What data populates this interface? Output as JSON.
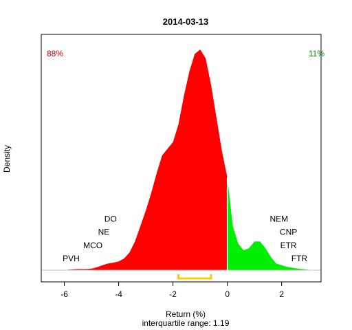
{
  "chart_data": {
    "type": "area",
    "title": "2014-03-13",
    "xlabel": "Return (%)",
    "ylabel": "Density",
    "subtitle": "interquartile range: 1.19",
    "xlim": [
      -6.85,
      3.45
    ],
    "ylim": [
      0,
      1
    ],
    "x_ticks": [
      -6,
      -4,
      -2,
      0,
      2
    ],
    "x_tick_labels": [
      "-6",
      "-4",
      "-2",
      "0",
      "2"
    ],
    "split_at": 0,
    "left_share_label": "88%",
    "right_share_label": "11%",
    "colors": {
      "negative": "#ff0000",
      "positive": "#00ee00",
      "negative_label": "#cc0000",
      "positive_label": "#008800",
      "iqr_bracket": "#ffcc00",
      "baseline": "#bebebe",
      "frame": "#000000"
    },
    "iqr": [
      -1.8,
      -0.6
    ],
    "density_curve": [
      [
        -6.2,
        0.0
      ],
      [
        -6.0,
        0.0
      ],
      [
        -5.8,
        0.003
      ],
      [
        -5.5,
        0.005
      ],
      [
        -5.2,
        0.005
      ],
      [
        -5.0,
        0.007
      ],
      [
        -4.8,
        0.013
      ],
      [
        -4.6,
        0.022
      ],
      [
        -4.4,
        0.03
      ],
      [
        -4.2,
        0.034
      ],
      [
        -4.0,
        0.04
      ],
      [
        -3.8,
        0.053
      ],
      [
        -3.6,
        0.08
      ],
      [
        -3.4,
        0.13
      ],
      [
        -3.2,
        0.2
      ],
      [
        -3.0,
        0.27
      ],
      [
        -2.8,
        0.35
      ],
      [
        -2.6,
        0.44
      ],
      [
        -2.4,
        0.52
      ],
      [
        -2.2,
        0.55
      ],
      [
        -2.0,
        0.58
      ],
      [
        -1.8,
        0.66
      ],
      [
        -1.6,
        0.79
      ],
      [
        -1.4,
        0.9
      ],
      [
        -1.2,
        0.98
      ],
      [
        -1.0,
        1.0
      ],
      [
        -0.8,
        0.96
      ],
      [
        -0.6,
        0.84
      ],
      [
        -0.4,
        0.69
      ],
      [
        -0.2,
        0.54
      ],
      [
        0.0,
        0.42
      ],
      [
        0.2,
        0.2
      ],
      [
        0.4,
        0.12
      ],
      [
        0.6,
        0.09
      ],
      [
        0.8,
        0.1
      ],
      [
        1.0,
        0.13
      ],
      [
        1.2,
        0.13
      ],
      [
        1.4,
        0.1
      ],
      [
        1.6,
        0.06
      ],
      [
        1.8,
        0.03
      ],
      [
        2.2,
        0.015
      ],
      [
        2.6,
        0.007
      ],
      [
        3.0,
        0.002
      ],
      [
        3.1,
        0.0
      ]
    ],
    "annotations": [
      {
        "label": "PVH",
        "x": -5.75,
        "y": 0.04
      },
      {
        "label": "MCO",
        "x": -4.95,
        "y": 0.1
      },
      {
        "label": "NE",
        "x": -4.55,
        "y": 0.16
      },
      {
        "label": "DO",
        "x": -4.3,
        "y": 0.22
      },
      {
        "label": "NEM",
        "x": 1.9,
        "y": 0.22
      },
      {
        "label": "CNP",
        "x": 2.25,
        "y": 0.16
      },
      {
        "label": "ETR",
        "x": 2.25,
        "y": 0.1
      },
      {
        "label": "FTR",
        "x": 2.65,
        "y": 0.04
      }
    ]
  }
}
